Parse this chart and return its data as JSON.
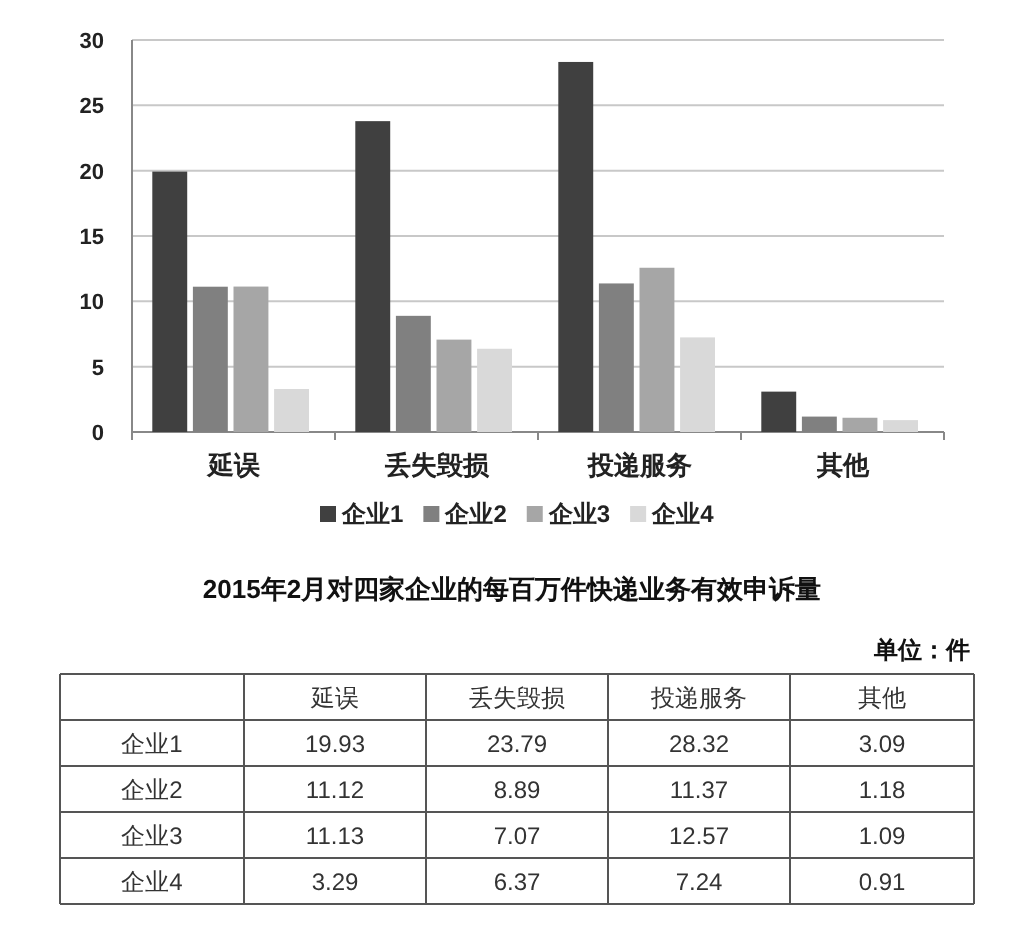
{
  "chart_data": {
    "type": "bar",
    "title": "2015年2月对四家企业的每百万件快递业务有效申诉量",
    "categories": [
      "延误",
      "丢失毁损",
      "投递服务",
      "其他"
    ],
    "series": [
      {
        "name": "企业1",
        "color": "#404040",
        "values": [
          19.93,
          23.79,
          28.32,
          3.09
        ]
      },
      {
        "name": "企业2",
        "color": "#808080",
        "values": [
          11.12,
          8.89,
          11.37,
          1.18
        ]
      },
      {
        "name": "企业3",
        "color": "#a6a6a6",
        "values": [
          11.13,
          7.07,
          12.57,
          1.09
        ]
      },
      {
        "name": "企业4",
        "color": "#d9d9d9",
        "values": [
          3.29,
          6.37,
          7.24,
          0.91
        ]
      }
    ],
    "ylim": [
      0,
      30
    ],
    "yticks": [
      0,
      5,
      10,
      15,
      20,
      25,
      30
    ],
    "grid": "y",
    "legend": "bottom",
    "data_labels": true,
    "annotations": [
      "单位：件"
    ]
  }
}
